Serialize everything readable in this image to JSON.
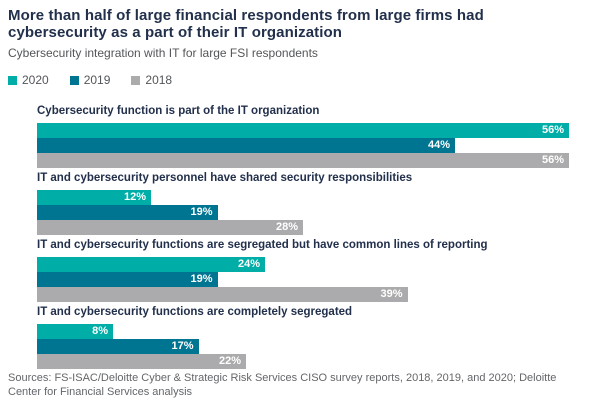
{
  "header": {
    "title": "More than half of large financial respondents from large firms had cybersecurity as a part of their IT organization",
    "subtitle": "Cybersecurity integration with IT for large FSI respondents"
  },
  "legend": [
    {
      "label": "2020",
      "color": "#00aea7"
    },
    {
      "label": "2019",
      "color": "#007592"
    },
    {
      "label": "2018",
      "color": "#ababad"
    }
  ],
  "chart_data": {
    "type": "bar",
    "orientation": "horizontal",
    "title": "Cybersecurity integration with IT for large FSI respondents",
    "categories": [
      "Cybersecurity function is part of the IT organization",
      "IT and cybersecurity personnel have shared security responsibilities",
      "IT and cybersecurity functions are segregated but have common lines of reporting",
      "IT and cybersecurity functions are completely segregated"
    ],
    "series": [
      {
        "name": "2020",
        "color": "#00aea7",
        "values": [
          56,
          12,
          24,
          8
        ]
      },
      {
        "name": "2019",
        "color": "#007592",
        "values": [
          44,
          19,
          19,
          17
        ]
      },
      {
        "name": "2018",
        "color": "#ababad",
        "values": [
          56,
          28,
          39,
          22
        ]
      }
    ],
    "value_suffix": "%",
    "xlim": [
      0,
      59
    ],
    "grid": false,
    "legend_position": "top",
    "value_labels": "inside-end"
  },
  "footer": {
    "sources": "Sources: FS-ISAC/Deloitte Cyber & Strategic Risk Services CISO survey reports, 2018, 2019, and 2020; Deloitte Center for Financial Services analysis"
  }
}
